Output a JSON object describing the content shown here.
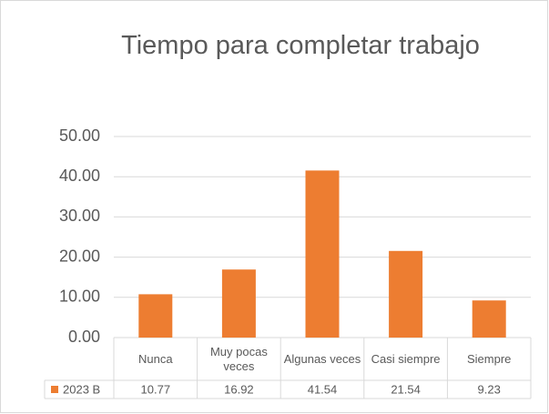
{
  "chart_data": {
    "type": "bar",
    "title": "Tiempo para completar trabajo",
    "categories": [
      "Nunca",
      "Muy pocas veces",
      "Algunas veces",
      "Casi siempre",
      "Siempre"
    ],
    "series": [
      {
        "name": "2023 B",
        "color": "#ed7d31",
        "values": [
          10.77,
          16.92,
          41.54,
          21.54,
          9.23
        ]
      }
    ],
    "ylim": [
      0,
      50
    ],
    "yticks": [
      {
        "value": 0,
        "label": "0.00"
      },
      {
        "value": 10,
        "label": "10.00"
      },
      {
        "value": 20,
        "label": "20.00"
      },
      {
        "value": 30,
        "label": "30.00"
      },
      {
        "value": 40,
        "label": "40.00"
      },
      {
        "value": 50,
        "label": "50.00"
      }
    ],
    "grid": true
  }
}
